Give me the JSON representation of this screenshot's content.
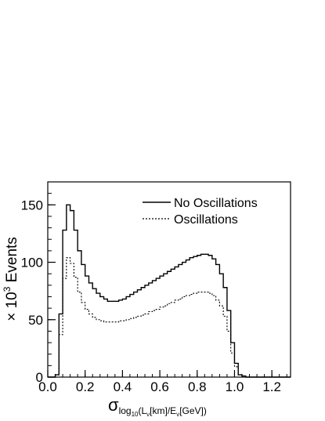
{
  "chart_data": {
    "type": "histogram-step",
    "x_axis": {
      "range": [
        0.0,
        1.3
      ],
      "ticks": [
        0.0,
        0.2,
        0.4,
        0.6,
        0.8,
        1.0,
        1.2
      ],
      "tick_labels": [
        "0.0",
        "0.2",
        "0.4",
        "0.6",
        "0.8",
        "1.0",
        "1.2"
      ],
      "label_symbol": "σ",
      "label_subscript_main": "log",
      "label_subscript_small": "10",
      "label_rest_1": "(L",
      "label_nu_1": "ν",
      "label_rest_2": "[km]/E",
      "label_nu_2": "ν",
      "label_rest_3": "[GeV])"
    },
    "y_axis": {
      "range": [
        0,
        170
      ],
      "ticks": [
        0,
        50,
        100,
        150
      ],
      "tick_labels": [
        "0",
        "50",
        "100",
        "150"
      ],
      "label_prefix": "× 10",
      "label_exponent": "3",
      "label_suffix": " Events"
    },
    "bin_edges": [
      0.0,
      0.02,
      0.04,
      0.06,
      0.08,
      0.1,
      0.12,
      0.14,
      0.16,
      0.18,
      0.2,
      0.22,
      0.24,
      0.26,
      0.28,
      0.3,
      0.32,
      0.34,
      0.36,
      0.38,
      0.4,
      0.42,
      0.44,
      0.46,
      0.48,
      0.5,
      0.52,
      0.54,
      0.56,
      0.58,
      0.6,
      0.62,
      0.64,
      0.66,
      0.68,
      0.7,
      0.72,
      0.74,
      0.76,
      0.78,
      0.8,
      0.82,
      0.84,
      0.86,
      0.88,
      0.9,
      0.92,
      0.94,
      0.96,
      0.98,
      1.0,
      1.02,
      1.04,
      1.06,
      1.08,
      1.1,
      1.12,
      1.14,
      1.16,
      1.18,
      1.2,
      1.22,
      1.24,
      1.26,
      1.28,
      1.3
    ],
    "series": [
      {
        "name": "No Oscillations",
        "style": "solid",
        "values": [
          0,
          0,
          2,
          55,
          128,
          150,
          145,
          128,
          110,
          98,
          88,
          82,
          77,
          73,
          70,
          68,
          66,
          66,
          66,
          67,
          68,
          70,
          72,
          74,
          76,
          78,
          80,
          82,
          84,
          86,
          88,
          90,
          92,
          94,
          96,
          98,
          100,
          102,
          104,
          105,
          106,
          107,
          107,
          106,
          103,
          98,
          90,
          78,
          58,
          30,
          12,
          2,
          1,
          0,
          0,
          0,
          0,
          0,
          0,
          0,
          0,
          0,
          0,
          0,
          0
        ]
      },
      {
        "name": "Oscillations",
        "style": "dotted",
        "values": [
          0,
          0,
          2,
          37,
          86,
          104,
          99,
          87,
          74,
          65,
          59,
          55,
          52,
          50,
          49,
          48,
          48,
          48,
          48,
          49,
          49,
          50,
          51,
          52,
          53,
          54,
          55,
          57,
          58,
          59,
          61,
          62,
          64,
          65,
          67,
          68,
          70,
          71,
          72,
          73,
          74,
          74,
          74,
          73,
          71,
          67,
          62,
          53,
          40,
          21,
          9,
          2,
          0,
          0,
          0,
          0,
          0,
          0,
          0,
          0,
          0,
          0,
          0,
          0,
          0
        ]
      }
    ],
    "legend": {
      "position": "top-right",
      "entries": [
        "No Oscillations",
        "Oscillations"
      ]
    },
    "grid": false
  }
}
